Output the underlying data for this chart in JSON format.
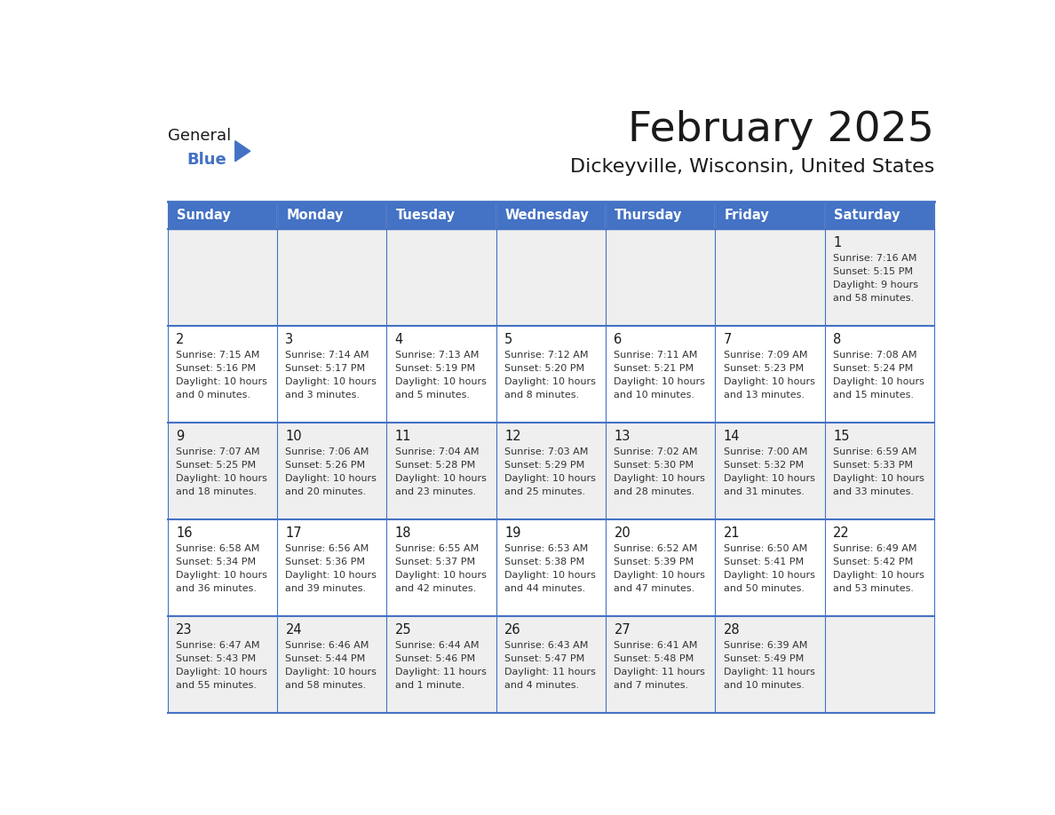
{
  "title": "February 2025",
  "subtitle": "Dickeyville, Wisconsin, United States",
  "header_color": "#4472C4",
  "header_text_color": "#FFFFFF",
  "cell_bg_even": "#EFEFEF",
  "cell_bg_odd": "#FFFFFF",
  "border_color": "#4472C4",
  "day_names": [
    "Sunday",
    "Monday",
    "Tuesday",
    "Wednesday",
    "Thursday",
    "Friday",
    "Saturday"
  ],
  "title_color": "#1a1a1a",
  "subtitle_color": "#1a1a1a",
  "logo_text1": "General",
  "logo_text2": "Blue",
  "logo_triangle_color": "#4472C4",
  "logo_text1_color": "#1a1a1a",
  "logo_text2_color": "#4472C4",
  "calendar_data": [
    [
      null,
      null,
      null,
      null,
      null,
      null,
      {
        "day": 1,
        "sunrise": "7:16 AM",
        "sunset": "5:15 PM",
        "dl_hours": "9 hours",
        "dl_mins": "and 58 minutes."
      }
    ],
    [
      {
        "day": 2,
        "sunrise": "7:15 AM",
        "sunset": "5:16 PM",
        "dl_hours": "10 hours",
        "dl_mins": "and 0 minutes."
      },
      {
        "day": 3,
        "sunrise": "7:14 AM",
        "sunset": "5:17 PM",
        "dl_hours": "10 hours",
        "dl_mins": "and 3 minutes."
      },
      {
        "day": 4,
        "sunrise": "7:13 AM",
        "sunset": "5:19 PM",
        "dl_hours": "10 hours",
        "dl_mins": "and 5 minutes."
      },
      {
        "day": 5,
        "sunrise": "7:12 AM",
        "sunset": "5:20 PM",
        "dl_hours": "10 hours",
        "dl_mins": "and 8 minutes."
      },
      {
        "day": 6,
        "sunrise": "7:11 AM",
        "sunset": "5:21 PM",
        "dl_hours": "10 hours",
        "dl_mins": "and 10 minutes."
      },
      {
        "day": 7,
        "sunrise": "7:09 AM",
        "sunset": "5:23 PM",
        "dl_hours": "10 hours",
        "dl_mins": "and 13 minutes."
      },
      {
        "day": 8,
        "sunrise": "7:08 AM",
        "sunset": "5:24 PM",
        "dl_hours": "10 hours",
        "dl_mins": "and 15 minutes."
      }
    ],
    [
      {
        "day": 9,
        "sunrise": "7:07 AM",
        "sunset": "5:25 PM",
        "dl_hours": "10 hours",
        "dl_mins": "and 18 minutes."
      },
      {
        "day": 10,
        "sunrise": "7:06 AM",
        "sunset": "5:26 PM",
        "dl_hours": "10 hours",
        "dl_mins": "and 20 minutes."
      },
      {
        "day": 11,
        "sunrise": "7:04 AM",
        "sunset": "5:28 PM",
        "dl_hours": "10 hours",
        "dl_mins": "and 23 minutes."
      },
      {
        "day": 12,
        "sunrise": "7:03 AM",
        "sunset": "5:29 PM",
        "dl_hours": "10 hours",
        "dl_mins": "and 25 minutes."
      },
      {
        "day": 13,
        "sunrise": "7:02 AM",
        "sunset": "5:30 PM",
        "dl_hours": "10 hours",
        "dl_mins": "and 28 minutes."
      },
      {
        "day": 14,
        "sunrise": "7:00 AM",
        "sunset": "5:32 PM",
        "dl_hours": "10 hours",
        "dl_mins": "and 31 minutes."
      },
      {
        "day": 15,
        "sunrise": "6:59 AM",
        "sunset": "5:33 PM",
        "dl_hours": "10 hours",
        "dl_mins": "and 33 minutes."
      }
    ],
    [
      {
        "day": 16,
        "sunrise": "6:58 AM",
        "sunset": "5:34 PM",
        "dl_hours": "10 hours",
        "dl_mins": "and 36 minutes."
      },
      {
        "day": 17,
        "sunrise": "6:56 AM",
        "sunset": "5:36 PM",
        "dl_hours": "10 hours",
        "dl_mins": "and 39 minutes."
      },
      {
        "day": 18,
        "sunrise": "6:55 AM",
        "sunset": "5:37 PM",
        "dl_hours": "10 hours",
        "dl_mins": "and 42 minutes."
      },
      {
        "day": 19,
        "sunrise": "6:53 AM",
        "sunset": "5:38 PM",
        "dl_hours": "10 hours",
        "dl_mins": "and 44 minutes."
      },
      {
        "day": 20,
        "sunrise": "6:52 AM",
        "sunset": "5:39 PM",
        "dl_hours": "10 hours",
        "dl_mins": "and 47 minutes."
      },
      {
        "day": 21,
        "sunrise": "6:50 AM",
        "sunset": "5:41 PM",
        "dl_hours": "10 hours",
        "dl_mins": "and 50 minutes."
      },
      {
        "day": 22,
        "sunrise": "6:49 AM",
        "sunset": "5:42 PM",
        "dl_hours": "10 hours",
        "dl_mins": "and 53 minutes."
      }
    ],
    [
      {
        "day": 23,
        "sunrise": "6:47 AM",
        "sunset": "5:43 PM",
        "dl_hours": "10 hours",
        "dl_mins": "and 55 minutes."
      },
      {
        "day": 24,
        "sunrise": "6:46 AM",
        "sunset": "5:44 PM",
        "dl_hours": "10 hours",
        "dl_mins": "and 58 minutes."
      },
      {
        "day": 25,
        "sunrise": "6:44 AM",
        "sunset": "5:46 PM",
        "dl_hours": "11 hours",
        "dl_mins": "and 1 minute."
      },
      {
        "day": 26,
        "sunrise": "6:43 AM",
        "sunset": "5:47 PM",
        "dl_hours": "11 hours",
        "dl_mins": "and 4 minutes."
      },
      {
        "day": 27,
        "sunrise": "6:41 AM",
        "sunset": "5:48 PM",
        "dl_hours": "11 hours",
        "dl_mins": "and 7 minutes."
      },
      {
        "day": 28,
        "sunrise": "6:39 AM",
        "sunset": "5:49 PM",
        "dl_hours": "11 hours",
        "dl_mins": "and 10 minutes."
      },
      null
    ]
  ]
}
